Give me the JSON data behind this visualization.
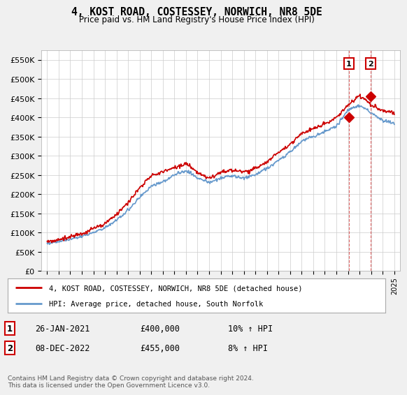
{
  "title": "4, KOST ROAD, COSTESSEY, NORWICH, NR8 5DE",
  "subtitle": "Price paid vs. HM Land Registry's House Price Index (HPI)",
  "ylim": [
    0,
    575000
  ],
  "xlim_start": 1994.5,
  "xlim_end": 2025.5,
  "hpi_color": "#6699cc",
  "price_color": "#cc0000",
  "marker_color": "#cc0000",
  "transaction1": {
    "date": 2021.07,
    "price": 400000,
    "label": "1"
  },
  "transaction2": {
    "date": 2022.93,
    "price": 455000,
    "label": "2"
  },
  "legend_line1": "4, KOST ROAD, COSTESSEY, NORWICH, NR8 5DE (detached house)",
  "legend_line2": "HPI: Average price, detached house, South Norfolk",
  "table_row1": [
    "1",
    "26-JAN-2021",
    "£400,000",
    "10% ↑ HPI"
  ],
  "table_row2": [
    "2",
    "08-DEC-2022",
    "£455,000",
    "8% ↑ HPI"
  ],
  "footnote": "Contains HM Land Registry data © Crown copyright and database right 2024.\nThis data is licensed under the Open Government Licence v3.0.",
  "background_color": "#f0f0f0",
  "plot_bg_color": "#ffffff",
  "grid_color": "#cccccc",
  "years_hpi": [
    1995,
    1996,
    1997,
    1998,
    1999,
    2000,
    2001,
    2002,
    2003,
    2004,
    2005,
    2006,
    2007,
    2008,
    2009,
    2010,
    2011,
    2012,
    2013,
    2014,
    2015,
    2016,
    2017,
    2018,
    2019,
    2020,
    2021,
    2022,
    2023,
    2024,
    2025
  ],
  "hpi_values": [
    72000,
    76000,
    82000,
    90000,
    100000,
    113000,
    132000,
    158000,
    192000,
    220000,
    232000,
    250000,
    262000,
    242000,
    230000,
    242000,
    247000,
    242000,
    250000,
    267000,
    288000,
    310000,
    338000,
    350000,
    362000,
    378000,
    418000,
    432000,
    412000,
    392000,
    385000
  ],
  "price_years": [
    1995,
    1996,
    1997,
    1998,
    1999,
    2000,
    2001,
    2002,
    2003,
    2004,
    2005,
    2006,
    2007,
    2008,
    2009,
    2010,
    2011,
    2012,
    2013,
    2014,
    2015,
    2016,
    2017,
    2018,
    2019,
    2020,
    2021,
    2022,
    2023,
    2024,
    2025
  ],
  "price_values": [
    76000,
    81000,
    89000,
    97000,
    110000,
    124000,
    148000,
    178000,
    215000,
    248000,
    258000,
    270000,
    278000,
    257000,
    242000,
    257000,
    262000,
    257000,
    267000,
    284000,
    308000,
    330000,
    358000,
    370000,
    383000,
    398000,
    432000,
    457000,
    433000,
    418000,
    410000
  ]
}
